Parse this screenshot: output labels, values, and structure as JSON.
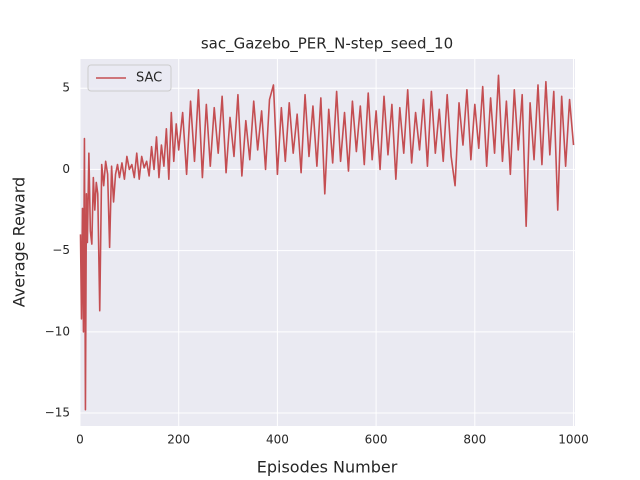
{
  "chart_data": {
    "type": "line",
    "title": "sac_Gazebo_PER_N-step_seed_10",
    "x_label": "Episodes Number",
    "y_label": "Average Reward",
    "x": [
      1,
      3,
      5,
      7,
      9,
      11,
      13,
      15,
      18,
      21,
      24,
      27,
      30,
      33,
      36,
      40,
      44,
      48,
      52,
      56,
      60,
      64,
      68,
      72,
      76,
      80,
      85,
      90,
      95,
      100,
      105,
      110,
      115,
      120,
      125,
      130,
      135,
      140,
      145,
      150,
      155,
      160,
      165,
      170,
      175,
      180,
      185,
      190,
      195,
      200,
      208,
      216,
      224,
      232,
      240,
      248,
      256,
      264,
      272,
      280,
      288,
      296,
      304,
      312,
      320,
      328,
      336,
      344,
      352,
      360,
      368,
      376,
      384,
      392,
      400,
      408,
      416,
      424,
      432,
      440,
      448,
      456,
      464,
      472,
      480,
      488,
      496,
      504,
      512,
      520,
      528,
      536,
      544,
      552,
      560,
      568,
      576,
      584,
      592,
      600,
      608,
      616,
      624,
      632,
      640,
      648,
      656,
      664,
      672,
      680,
      688,
      696,
      704,
      712,
      720,
      728,
      736,
      744,
      752,
      760,
      768,
      776,
      784,
      792,
      800,
      808,
      816,
      824,
      832,
      840,
      848,
      856,
      864,
      872,
      880,
      888,
      896,
      904,
      912,
      920,
      928,
      936,
      944,
      952,
      960,
      968,
      976,
      984,
      992,
      1000
    ],
    "series": [
      {
        "name": "SAC",
        "color": "#c44e52",
        "values": [
          -4,
          -9.2,
          -2.4,
          -10,
          1.9,
          -14.8,
          -1.5,
          -4.5,
          1,
          -3.8,
          -4.6,
          -0.5,
          -2.5,
          -0.8,
          -1.5,
          -8.7,
          0.3,
          -1,
          0.5,
          -0.3,
          -4.8,
          0.2,
          -2,
          -0.3,
          0.3,
          -0.5,
          0.4,
          -0.6,
          0.8,
          0,
          0.3,
          -0.5,
          1,
          -0.6,
          0.8,
          0.1,
          0.5,
          -0.4,
          1.4,
          0,
          2,
          -0.5,
          1.5,
          0.2,
          2.5,
          -0.6,
          3.5,
          0.5,
          2.8,
          1.2,
          3.5,
          -0.3,
          4.2,
          0.5,
          4.9,
          -0.5,
          4,
          0.2,
          3.8,
          1,
          4.5,
          -0.2,
          3.2,
          0.8,
          4.6,
          -0.4,
          3,
          0.6,
          4.2,
          1.2,
          3.6,
          0,
          4.3,
          5.2,
          -0.3,
          3.8,
          0.5,
          4.1,
          1,
          3.4,
          -0.2,
          4.6,
          0.8,
          3.9,
          0.2,
          4.4,
          -1.5,
          3.7,
          0.4,
          4.8,
          0.5,
          3.5,
          -0.1,
          4.2,
          1.1,
          3.9,
          0.3,
          4.7,
          0.6,
          3.6,
          0,
          4.5,
          0.9,
          4,
          -0.6,
          3.8,
          1,
          4.9,
          0.4,
          3.5,
          1.2,
          4.3,
          0.2,
          4.8,
          1,
          3.7,
          0.5,
          4.6,
          0.8,
          -1,
          4.1,
          1.5,
          4.9,
          0.6,
          4,
          1.3,
          5.1,
          0.2,
          4.4,
          1,
          5.8,
          0.5,
          4.2,
          -0.3,
          4.9,
          1.2,
          4.6,
          -3.5,
          4.1,
          0.6,
          5.2,
          0.3,
          5.4,
          0.9,
          4.8,
          -2.5,
          4.5,
          0.2,
          4.3,
          1.5
        ]
      }
    ],
    "xlim": [
      0,
      1003
    ],
    "ylim": [
      -15.8,
      6.8
    ],
    "xticks": [
      0,
      200,
      400,
      600,
      800,
      1000
    ],
    "yticks": [
      {
        "value": -15,
        "label": "−15"
      },
      {
        "value": -10,
        "label": "−10"
      },
      {
        "value": -5,
        "label": "−5"
      },
      0,
      5
    ],
    "grid": true,
    "legend": "upper left"
  }
}
